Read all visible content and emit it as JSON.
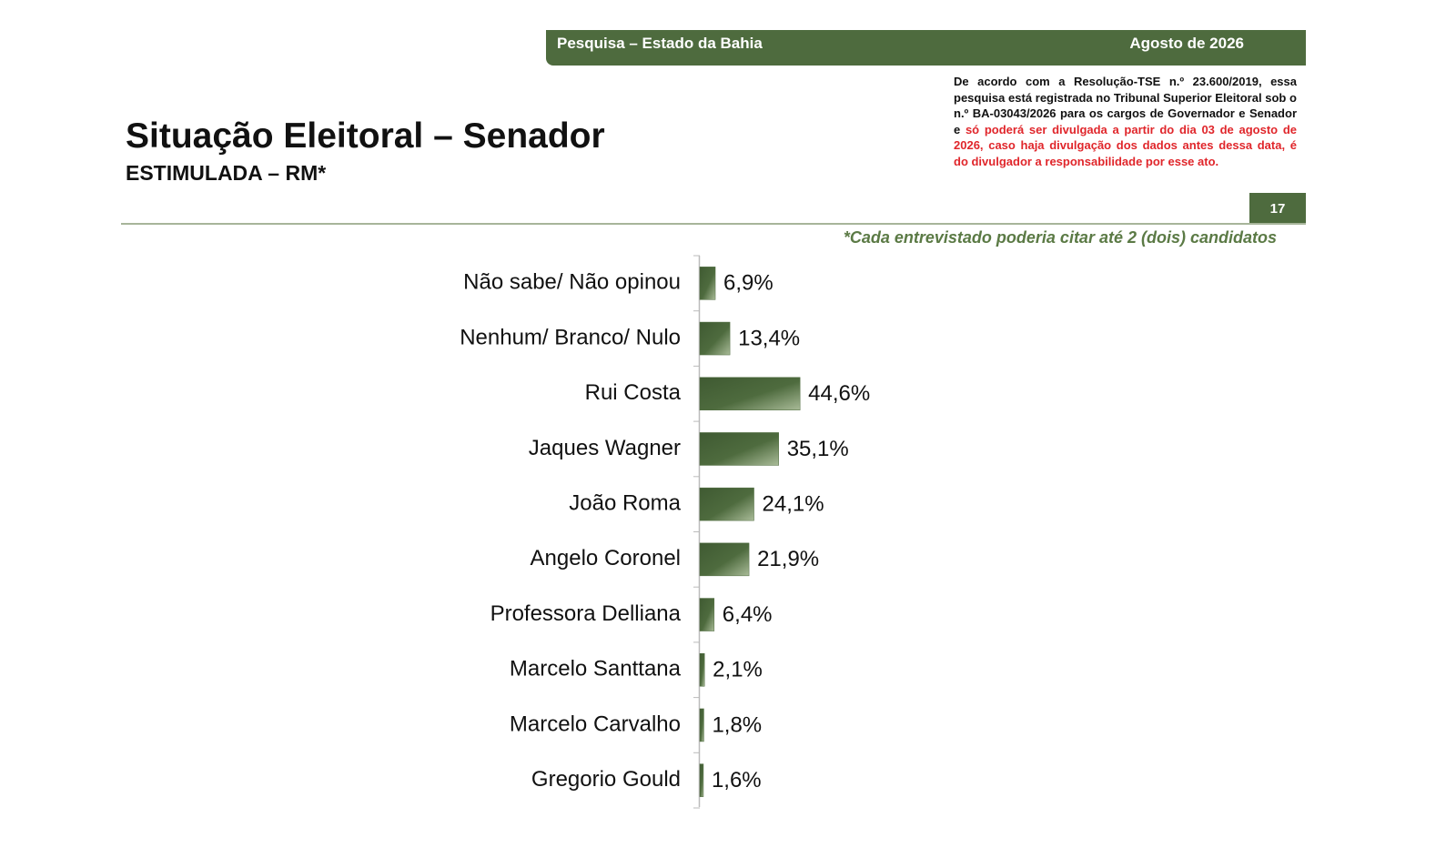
{
  "header": {
    "left": "Pesquisa – Estado da Bahia",
    "right": "Agosto de 2026"
  },
  "disclaimer": {
    "text": "De acordo com a Resolução-TSE n.º 23.600/2019, essa pesquisa está registrada no Tribunal Superior Eleitoral sob o n.º BA-03043/2026 para os cargos de Governador e Senador e",
    "highlight": "só poderá ser divulgada a partir do dia 03 de agosto de 2026, caso haja divulgação dos dados antes dessa data, é do divulgador a responsabilidade por esse ato."
  },
  "page_number": "17",
  "chart_data": {
    "type": "bar",
    "orientation": "horizontal",
    "title": "Situação Eleitoral – Senador",
    "subtitle": "ESTIMULADA – RM*",
    "note": "*Cada entrevistado poderia citar até 2 (dois) candidatos",
    "categories": [
      "Não sabe/ Não opinou",
      "Nenhum/ Branco/ Nulo",
      "Rui Costa",
      "Jaques Wagner",
      "João Roma",
      "Angelo Coronel",
      "Professora Delliana",
      "Marcelo Santtana",
      "Marcelo Carvalho",
      "Gregorio Gould"
    ],
    "values": [
      6.9,
      13.4,
      44.6,
      35.1,
      24.1,
      21.9,
      6.4,
      2.1,
      1.8,
      1.6
    ],
    "value_labels": [
      "6,9%",
      "13,4%",
      "44,6%",
      "35,1%",
      "24,1%",
      "21,9%",
      "6,4%",
      "2,1%",
      "1,8%",
      "1,6%"
    ],
    "color": "#4e6b3e"
  }
}
